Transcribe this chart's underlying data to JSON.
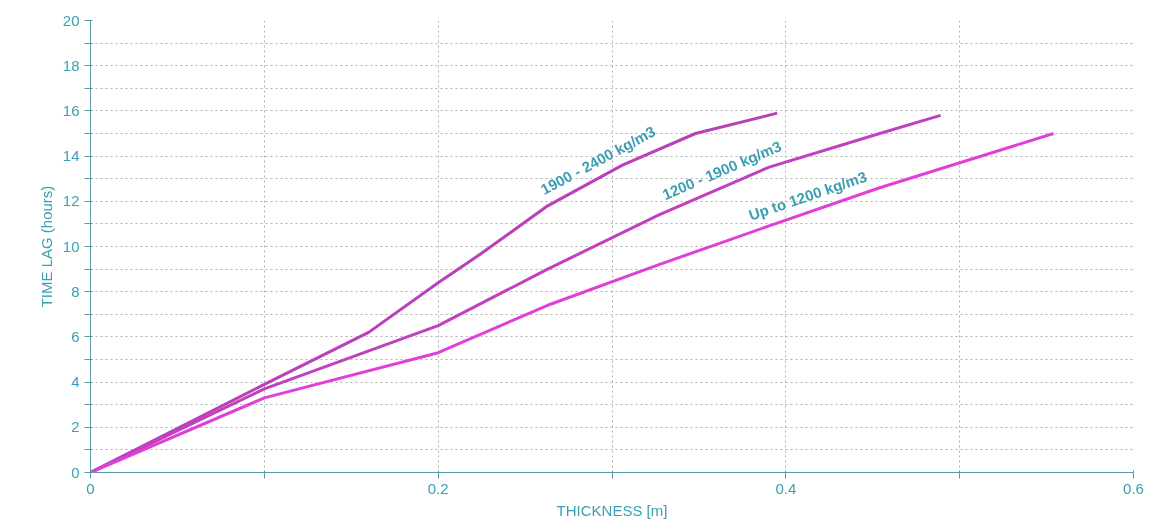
{
  "chart_data": {
    "type": "line",
    "xlabel": "THICKNESS [m]",
    "ylabel": "TIME LAG (hours)",
    "xlim": [
      0,
      0.6
    ],
    "ylim": [
      0,
      20
    ],
    "xticks": [
      0,
      {
        "value": 0.1,
        "label": null
      },
      0.2,
      {
        "value": 0.3,
        "label": null
      },
      0.4,
      {
        "value": 0.5,
        "label": null
      },
      0.6
    ],
    "yticks": [
      0,
      {
        "value": 1,
        "label": null
      },
      2,
      {
        "value": 3,
        "label": null
      },
      4,
      {
        "value": 5,
        "label": null
      },
      6,
      {
        "value": 7,
        "label": null
      },
      8,
      {
        "value": 9,
        "label": null
      },
      10,
      {
        "value": 11,
        "label": null
      },
      12,
      {
        "value": 13,
        "label": null
      },
      14,
      {
        "value": 15,
        "label": null
      },
      16,
      {
        "value": 17,
        "label": null
      },
      18,
      {
        "value": 19,
        "label": null
      },
      20
    ],
    "grid": true,
    "marker": "none",
    "line_style": "solid",
    "series": [
      {
        "name": "1900 - 2400 kg/m3",
        "color": "#b840b8",
        "x": [
          0,
          0.1,
          0.16,
          0.2,
          0.225,
          0.263,
          0.306,
          0.348,
          0.395
        ],
        "values": [
          0,
          3.9,
          6.2,
          8.4,
          9.7,
          11.8,
          13.6,
          15.0,
          15.9
        ]
      },
      {
        "name": "1200 - 1900 kg/m3",
        "color": "#c040c0",
        "x": [
          0,
          0.1,
          0.2,
          0.263,
          0.327,
          0.39,
          0.454,
          0.489
        ],
        "values": [
          0,
          3.7,
          6.5,
          9.0,
          11.4,
          13.5,
          15.0,
          15.8
        ]
      },
      {
        "name": "Up to 1200 kg/m3",
        "color": "#e040d8",
        "x": [
          0,
          0.1,
          0.2,
          0.263,
          0.327,
          0.39,
          0.454,
          0.554
        ],
        "values": [
          0,
          3.3,
          5.3,
          7.4,
          9.2,
          10.9,
          12.6,
          15.0
        ]
      }
    ]
  }
}
